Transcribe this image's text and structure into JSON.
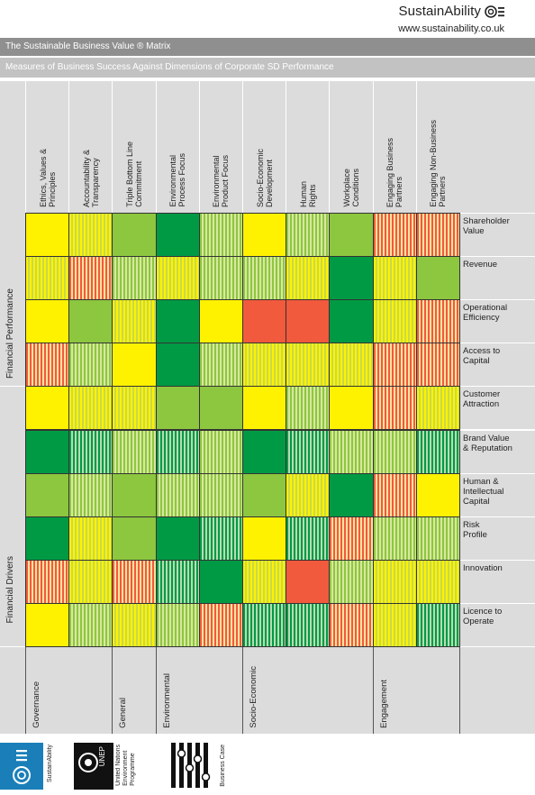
{
  "header": {
    "brand_name": "SustainAbility",
    "url": "www.sustainability.co.uk",
    "title": "The Sustainable Business Value ® Matrix",
    "subtitle": "Measures of Business Success Against Dimensions of Corporate SD Performance"
  },
  "columns": [
    "Ethics, Values &\nPrinciples",
    "Accountability &\nTransparency",
    "Triple Bottom Line\nCommitment",
    "Environmental\nProcess Focus",
    "Environmental\nProduct Focus",
    "Socio-Economic\nDevelopment",
    "Human\nRights",
    "Workplace\nConditions",
    "Engaging Business\nPartners",
    "Engaging Non-Business\nPartners"
  ],
  "rows": [
    "Shareholder\nValue",
    "Revenue",
    "Operational\nEfficiency",
    "Access to\nCapital",
    "Customer\nAttraction",
    "Brand Value\n& Reputation",
    "Human &\nIntellectual\nCapital",
    "Risk\nProfile",
    "Innovation",
    "Licence to\nOperate"
  ],
  "row_groups": [
    "Financial Performance",
    "Financial Drivers"
  ],
  "column_groups": [
    "Governance",
    "General",
    "Environmental",
    "Socio-Economic",
    "Engagement"
  ],
  "legend_colors": {
    "Y": "#fff200",
    "LG": "#8dc63f",
    "DG": "#009a44",
    "R": "#f15a3c",
    "sY": "#fff200|#c9d94a",
    "sG": "#8dc63f|#d8e8a0",
    "sDG": "#009a44|#b8dcb4",
    "sR": "#f15a3c|#fde3a0"
  },
  "matrix": [
    [
      "Y",
      "sY",
      "LG",
      "DG",
      "sG",
      "Y",
      "sG",
      "LG",
      "sR",
      "sR"
    ],
    [
      "sY",
      "sR",
      "sG",
      "sY",
      "sG",
      "sG",
      "sY",
      "DG",
      "sY",
      "LG"
    ],
    [
      "Y",
      "LG",
      "sY",
      "DG",
      "Y",
      "R",
      "R",
      "DG",
      "sY",
      "sR"
    ],
    [
      "sR",
      "sG",
      "Y",
      "DG",
      "sG",
      "sY",
      "sY",
      "sY",
      "sR",
      "sR"
    ],
    [
      "Y",
      "sY",
      "sY",
      "LG",
      "LG",
      "Y",
      "sG",
      "Y",
      "sR",
      "sY"
    ],
    [
      "DG",
      "sDG",
      "sG",
      "sDG",
      "sG",
      "DG",
      "sDG",
      "sG",
      "sG",
      "sDG"
    ],
    [
      "LG",
      "sG",
      "LG",
      "sG",
      "sG",
      "LG",
      "sY",
      "DG",
      "sR",
      "Y"
    ],
    [
      "DG",
      "sY",
      "LG",
      "DG",
      "sDG",
      "Y",
      "sDG",
      "sR",
      "sG",
      "sG"
    ],
    [
      "sR",
      "sY",
      "sR",
      "sDG",
      "DG",
      "sY",
      "R",
      "sG",
      "sY",
      "sY"
    ],
    [
      "Y",
      "sG",
      "sY",
      "sG",
      "sR",
      "sDG",
      "sDG",
      "sR",
      "sY",
      "sDG"
    ]
  ],
  "footer": {
    "logo1_text": "SustainAbility",
    "logo2_text": "United Nations\nEnvironment\nProgramme",
    "logo2_badge": "UNEP",
    "logo3_text": "Business Case"
  }
}
